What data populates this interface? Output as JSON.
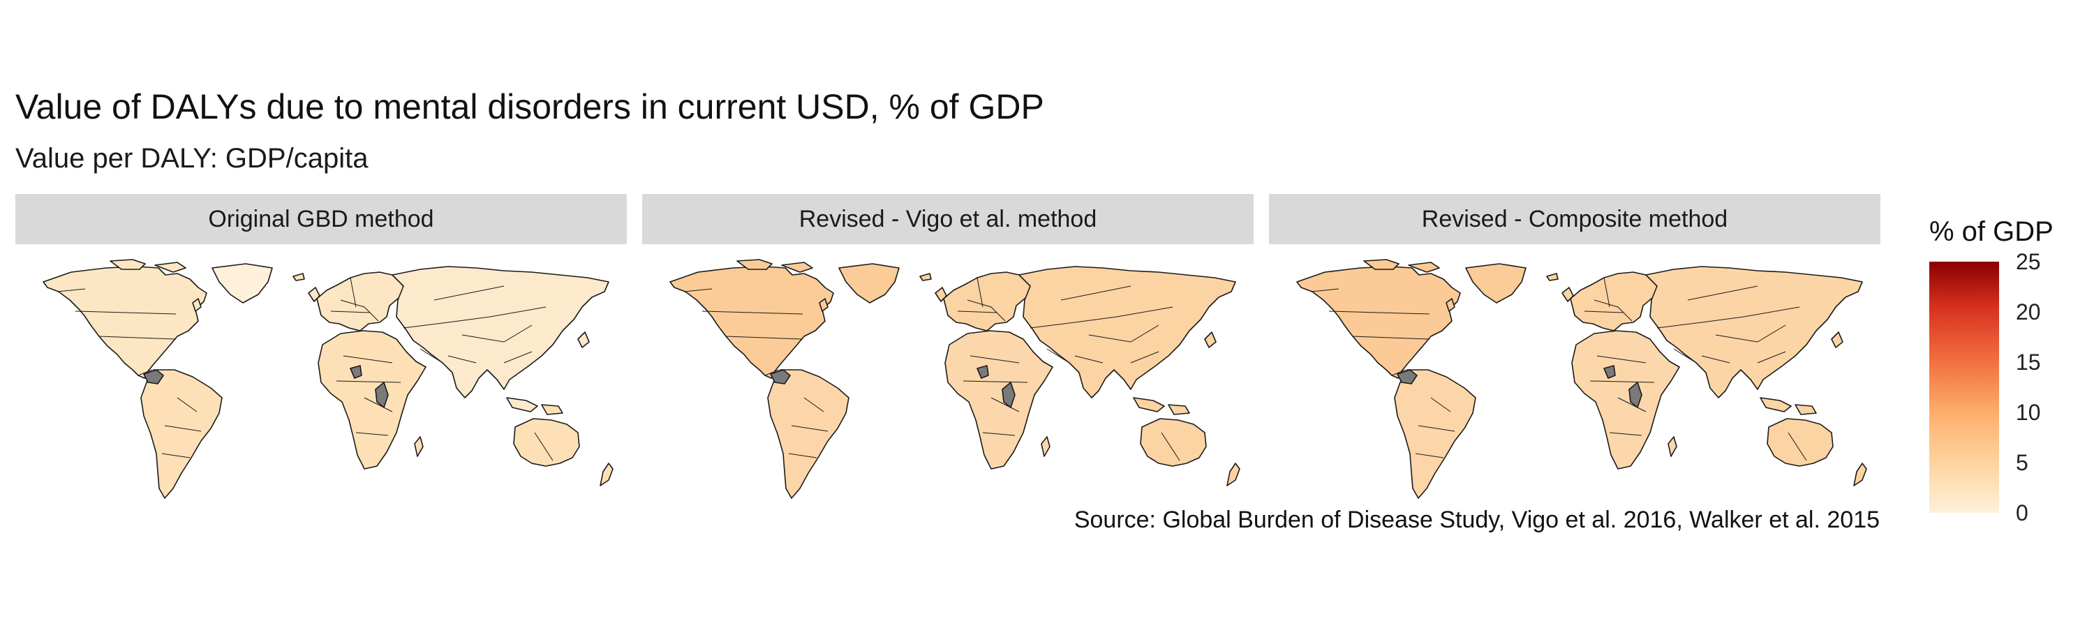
{
  "title": "Value of DALYs due to mental disorders in current USD, % of GDP",
  "subtitle": "Value per DALY: GDP/capita",
  "source": "Source: Global Burden of Disease Study, Vigo et al. 2016, Walker et al. 2015",
  "legend": {
    "title": "% of GDP",
    "range": [
      0,
      25
    ],
    "ticks": [
      "0",
      "5",
      "10",
      "15",
      "20",
      "25"
    ],
    "colors": [
      "#fff0db",
      "#fdd49e",
      "#fdae6b",
      "#f16b3d",
      "#d7301f",
      "#8b0000"
    ],
    "no_data_color": "#7a7a7a"
  },
  "panels": [
    {
      "label": "Original GBD method",
      "fills": {
        "north_america": "#fde6c3",
        "greenland": "#fff0db",
        "south_america": "#fde0b6",
        "europe": "#fde6c3",
        "africa": "#fde0b6",
        "asia": "#fde9cc",
        "oceania": "#fde0b6"
      }
    },
    {
      "label": "Revised - Vigo et al. method",
      "fills": {
        "north_america": "#fbcc98",
        "greenland": "#fbcc98",
        "south_america": "#fcd6a8",
        "europe": "#fcd3a3",
        "africa": "#fcd7ab",
        "asia": "#fcd3a3",
        "oceania": "#fcd3a3"
      }
    },
    {
      "label": "Revised - Composite method",
      "fills": {
        "north_america": "#fbca96",
        "greenland": "#fbcc98",
        "south_america": "#fcd6a8",
        "europe": "#fcd3a3",
        "africa": "#fcd7ab",
        "asia": "#fcd5a6",
        "oceania": "#fcd3a3"
      }
    }
  ]
}
